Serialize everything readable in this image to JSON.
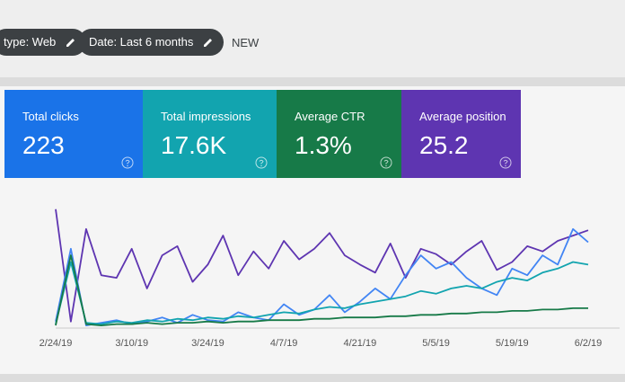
{
  "header": {
    "chips": [
      "type: Web",
      "Date: Last 6 months"
    ],
    "new_button": "NEW"
  },
  "cards": [
    {
      "label": "Total clicks",
      "value": "223",
      "color": "#1a73e8"
    },
    {
      "label": "Total impressions",
      "value": "17.6K",
      "color": "#12a4af"
    },
    {
      "label": "Average CTR",
      "value": "1.3%",
      "color": "#177a48"
    },
    {
      "label": "Average position",
      "value": "25.2",
      "color": "#5e35b1"
    }
  ],
  "chart_data": {
    "type": "line",
    "categories": [
      "2/24/19",
      null,
      null,
      null,
      null,
      "3/10/19",
      null,
      null,
      null,
      null,
      "3/24/19",
      null,
      null,
      null,
      null,
      "4/7/19",
      null,
      null,
      null,
      null,
      "4/21/19",
      null,
      null,
      null,
      null,
      "5/5/19",
      null,
      null,
      null,
      null,
      "5/19/19",
      null,
      null,
      null,
      null,
      "6/2/19"
    ],
    "ylim": [
      0,
      100
    ],
    "series": [
      {
        "color": "#5e35b1",
        "values": [
          90,
          5,
          75,
          40,
          38,
          60,
          30,
          55,
          62,
          35,
          48,
          70,
          40,
          58,
          45,
          66,
          52,
          60,
          72,
          55,
          48,
          42,
          64,
          38,
          60,
          56,
          48,
          58,
          66,
          44,
          50,
          62,
          58,
          66,
          70,
          74
        ]
      },
      {
        "color": "#4285f4",
        "values": [
          5,
          60,
          2,
          4,
          6,
          3,
          5,
          8,
          4,
          10,
          6,
          5,
          12,
          8,
          6,
          18,
          10,
          14,
          25,
          12,
          20,
          30,
          22,
          40,
          55,
          45,
          50,
          38,
          30,
          25,
          45,
          40,
          55,
          48,
          75,
          65
        ]
      },
      {
        "color": "#12a4af",
        "values": [
          3,
          50,
          4,
          3,
          5,
          4,
          6,
          5,
          7,
          6,
          8,
          7,
          9,
          8,
          10,
          12,
          11,
          14,
          16,
          15,
          18,
          20,
          22,
          24,
          28,
          26,
          30,
          32,
          30,
          35,
          38,
          36,
          42,
          45,
          50,
          48
        ]
      },
      {
        "color": "#177a48",
        "values": [
          2,
          55,
          3,
          2,
          3,
          3,
          4,
          3,
          4,
          4,
          5,
          4,
          5,
          5,
          6,
          6,
          6,
          7,
          7,
          8,
          8,
          8,
          9,
          9,
          10,
          10,
          11,
          11,
          12,
          12,
          13,
          13,
          14,
          14,
          15,
          15
        ]
      }
    ]
  }
}
